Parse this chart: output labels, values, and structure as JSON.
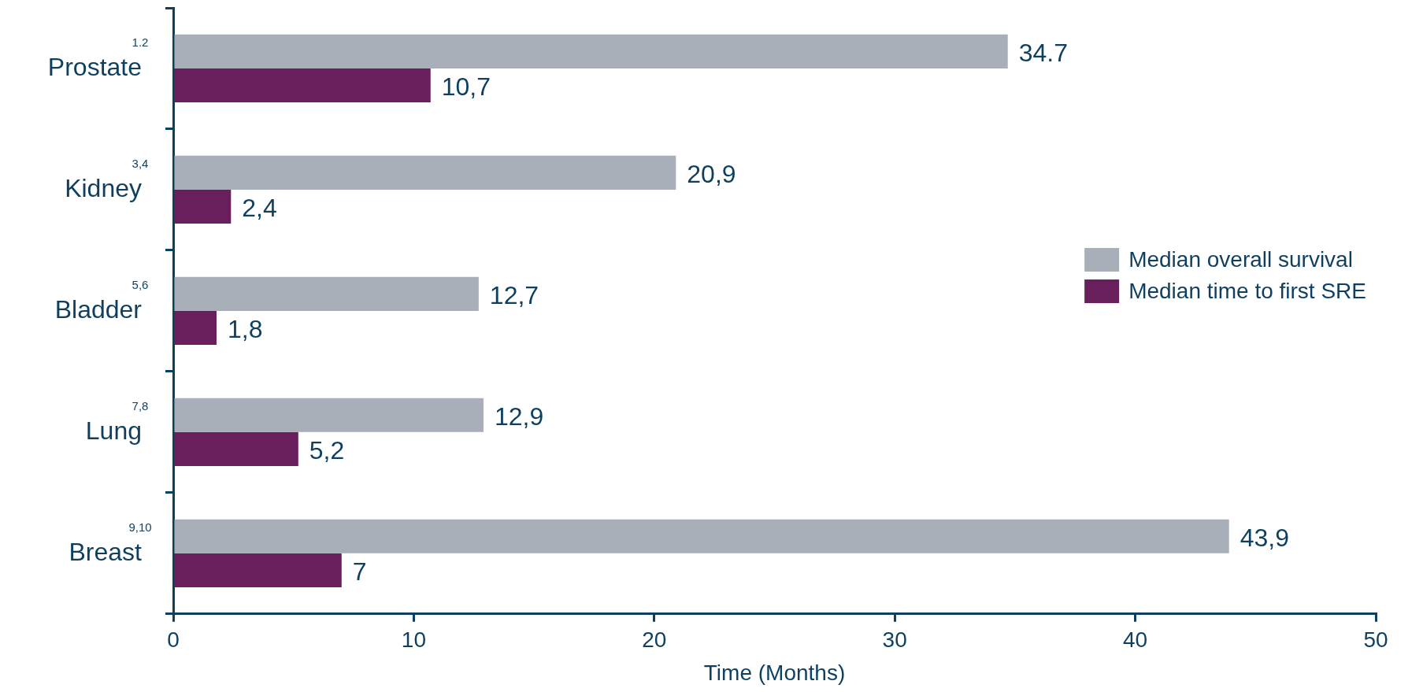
{
  "chart_data": {
    "type": "bar",
    "orientation": "horizontal",
    "xlabel": "Time (Months)",
    "categories": [
      "Prostate$^{1.2}$",
      "Kidney$^{3,4}$",
      "Bladder$^{5,6}$",
      "Lung$^{7,8}$",
      "Breast$^{9,10}$"
    ],
    "series": [
      {
        "name": "Median overall survival",
        "color": "#a9afb9",
        "values": [
          34.7,
          20.9,
          12.7,
          12.9,
          43.9
        ],
        "value_labels": [
          "34.7",
          "20,9",
          "12,7",
          "12,9",
          "43,9"
        ]
      },
      {
        "name": "Median time to first SRE",
        "color": "#6a1f5d",
        "values": [
          10.7,
          2.4,
          1.8,
          5.2,
          7
        ],
        "value_labels": [
          "10,7",
          "2,4",
          "1,8",
          "5,2",
          "7"
        ]
      }
    ],
    "xlim": [
      0,
      50
    ],
    "xticks": [
      0,
      10,
      20,
      30,
      40,
      50
    ],
    "legend": "right"
  }
}
